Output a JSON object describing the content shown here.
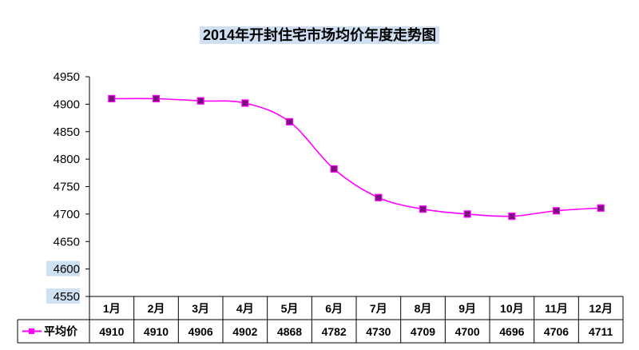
{
  "chart_data": {
    "type": "line",
    "title": "2014年开封住宅市场均价年度走势图",
    "categories": [
      "1月",
      "2月",
      "3月",
      "4月",
      "5月",
      "6月",
      "7月",
      "8月",
      "9月",
      "10月",
      "11月",
      "12月"
    ],
    "series": [
      {
        "name": "平均价",
        "values": [
          4910,
          4910,
          4906,
          4902,
          4868,
          4782,
          4730,
          4709,
          4700,
          4696,
          4706,
          4711
        ],
        "color": "#ff00ff"
      }
    ],
    "y_ticks": [
      "4950",
      "4900",
      "4850",
      "4800",
      "4750",
      "4700",
      "4650",
      "4600",
      "4550"
    ],
    "ylim": [
      4550,
      4950
    ],
    "grid": false,
    "legend": "data-table"
  },
  "colors": {
    "line": "#ff00ff",
    "marker": "#7a0f7a",
    "axis": "#000000",
    "tick_highlight": "#cfe0f3"
  }
}
